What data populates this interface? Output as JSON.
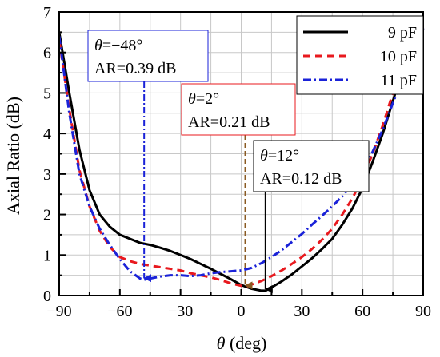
{
  "chart_data": {
    "type": "line",
    "xlabel_symbol": "θ",
    "xlabel_unit": " (deg)",
    "ylabel": "Axial Ratio (dB)",
    "xlim": [
      -90,
      90
    ],
    "ylim": [
      0,
      7
    ],
    "x_ticks": [
      "−90",
      "−60",
      "−30",
      "0",
      "30",
      "60",
      "90"
    ],
    "x_tick_values": [
      -90,
      -60,
      -30,
      0,
      30,
      60,
      90
    ],
    "y_ticks": [
      "0",
      "1",
      "2",
      "3",
      "4",
      "5",
      "6",
      "7"
    ],
    "y_tick_values": [
      0,
      1,
      2,
      3,
      4,
      5,
      6,
      7
    ],
    "grid": true,
    "legend_position": "top-right",
    "series": [
      {
        "name": "9 pF",
        "color": "#000000",
        "style": "solid",
        "x": [
          -90,
          -85,
          -80,
          -75,
          -70,
          -65,
          -60,
          -55,
          -50,
          -45,
          -40,
          -35,
          -30,
          -25,
          -20,
          -15,
          -10,
          -5,
          0,
          5,
          10,
          12,
          15,
          20,
          25,
          30,
          35,
          40,
          45,
          50,
          55,
          60,
          65,
          70,
          75,
          80,
          85,
          90
        ],
        "y": [
          6.5,
          5.0,
          3.6,
          2.6,
          2.0,
          1.7,
          1.5,
          1.4,
          1.3,
          1.25,
          1.18,
          1.1,
          1.0,
          0.9,
          0.78,
          0.66,
          0.53,
          0.4,
          0.26,
          0.17,
          0.12,
          0.12,
          0.2,
          0.35,
          0.52,
          0.72,
          0.92,
          1.15,
          1.4,
          1.75,
          2.15,
          2.65,
          3.3,
          4.0,
          4.8,
          5.6,
          6.1,
          6.6
        ]
      },
      {
        "name": "10 pF",
        "color": "#e8191e",
        "style": "dash",
        "x": [
          -90,
          -85,
          -80,
          -75,
          -70,
          -65,
          -60,
          -55,
          -50,
          -45,
          -40,
          -35,
          -30,
          -25,
          -20,
          -15,
          -10,
          -5,
          0,
          2,
          5,
          10,
          15,
          20,
          25,
          30,
          35,
          40,
          45,
          50,
          55,
          60,
          65,
          70,
          75,
          80,
          85,
          90
        ],
        "y": [
          6.3,
          4.6,
          3.1,
          2.2,
          1.6,
          1.2,
          0.95,
          0.85,
          0.78,
          0.74,
          0.7,
          0.66,
          0.62,
          0.55,
          0.5,
          0.45,
          0.38,
          0.3,
          0.24,
          0.21,
          0.27,
          0.36,
          0.48,
          0.62,
          0.78,
          0.95,
          1.15,
          1.38,
          1.65,
          2.0,
          2.4,
          2.9,
          3.5,
          4.2,
          5.0,
          5.7,
          6.2,
          6.6
        ]
      },
      {
        "name": "11 pF",
        "color": "#1a22d8",
        "style": "dashdot",
        "x": [
          -90,
          -85,
          -80,
          -75,
          -70,
          -65,
          -60,
          -55,
          -50,
          -48,
          -45,
          -40,
          -35,
          -30,
          -25,
          -20,
          -15,
          -10,
          -5,
          0,
          5,
          10,
          15,
          20,
          25,
          30,
          35,
          40,
          45,
          50,
          55,
          60,
          65,
          70,
          75,
          80,
          85,
          90
        ],
        "y": [
          6.4,
          4.5,
          3.0,
          2.2,
          1.65,
          1.25,
          0.9,
          0.6,
          0.42,
          0.39,
          0.42,
          0.47,
          0.5,
          0.5,
          0.48,
          0.5,
          0.55,
          0.58,
          0.6,
          0.62,
          0.68,
          0.8,
          0.95,
          1.12,
          1.32,
          1.52,
          1.75,
          1.97,
          2.2,
          2.45,
          2.75,
          3.1,
          3.55,
          4.1,
          4.75,
          5.4,
          6.0,
          6.6
        ]
      }
    ],
    "annotations": [
      {
        "x": -48,
        "y": 0.39,
        "line1": "θ=−48°",
        "line2": "AR=0.39 dB",
        "arrow_color": "#1a22d8",
        "arrow_style": "dashdot",
        "box_border": "#1a22d8"
      },
      {
        "x": 2,
        "y": 0.21,
        "line1": "θ=2°",
        "line2": "AR=0.21 dB",
        "arrow_color": "#8a5a22",
        "arrow_style": "dash",
        "box_border": "#e8191e"
      },
      {
        "x": 12,
        "y": 0.12,
        "line1": "θ=12°",
        "line2": "AR=0.12 dB",
        "arrow_color": "#000000",
        "arrow_style": "solid",
        "box_border": "#000000"
      }
    ]
  }
}
